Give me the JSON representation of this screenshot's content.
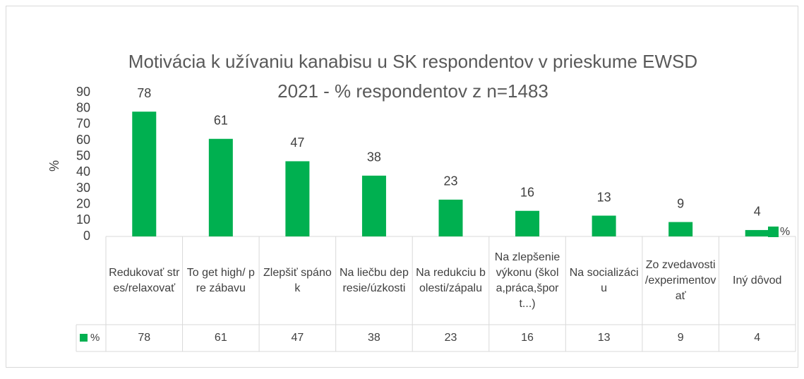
{
  "chart_data": {
    "type": "bar",
    "title": "Motivácia k užívaniu kanabisu  u SK respondentov v prieskume EWSD 2021 - % respondentov z  n=1483",
    "y_label": "%",
    "categories": [
      "Redukovať stres/relaxovať",
      "To get high/ pre zábavu",
      "Zlepšiť spánok",
      "Na liečbu depresie/úzkosti",
      "Na redukciu bolesti/zápalu",
      "Na zlepšenie výkonu (škola,práca,šport...)",
      "Na socializáciu",
      "Zo zvedavosti /experimentovať",
      "Iný dôvod"
    ],
    "series": [
      {
        "name": "%",
        "color": "#00b050",
        "values": [
          78,
          61,
          47,
          38,
          23,
          16,
          13,
          9,
          4
        ]
      }
    ],
    "ylim": [
      0,
      90
    ],
    "yticks": [
      0,
      10,
      20,
      30,
      40,
      50,
      60,
      70,
      80,
      90
    ],
    "data_table": true,
    "legend": "right"
  }
}
